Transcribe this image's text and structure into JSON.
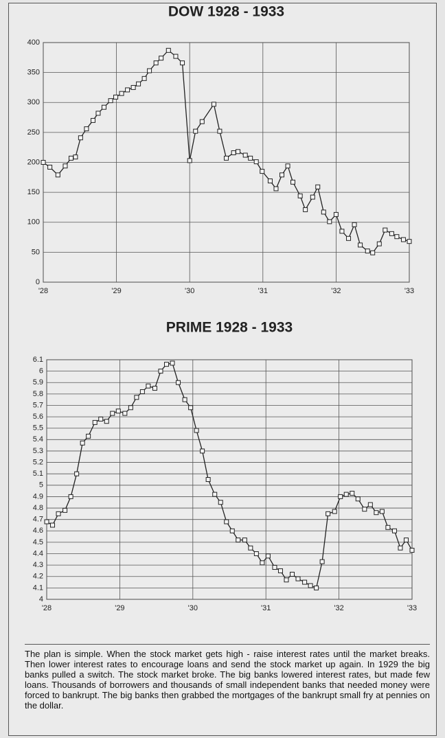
{
  "chart_data": [
    {
      "type": "line",
      "title": "DOW 1928 - 1933",
      "x": [
        1928.0,
        1928.09,
        1928.2,
        1928.3,
        1928.38,
        1928.44,
        1928.51,
        1928.59,
        1928.68,
        1928.75,
        1928.83,
        1928.92,
        1928.99,
        1929.07,
        1929.15,
        1929.23,
        1929.3,
        1929.38,
        1929.45,
        1929.54,
        1929.61,
        1929.71,
        1929.81,
        1929.9,
        1930.0,
        1930.08,
        1930.17,
        1930.33,
        1930.41,
        1930.5,
        1930.6,
        1930.66,
        1930.76,
        1930.83,
        1930.91,
        1930.99,
        1931.1,
        1931.18,
        1931.26,
        1931.34,
        1931.41,
        1931.51,
        1931.58,
        1931.68,
        1931.75,
        1931.83,
        1931.91,
        1932.0,
        1932.08,
        1932.17,
        1932.25,
        1932.33,
        1932.43,
        1932.5,
        1932.59,
        1932.67,
        1932.76,
        1932.83,
        1932.92,
        1933.0
      ],
      "values": [
        200,
        192,
        179,
        194,
        207,
        209,
        241,
        256,
        270,
        282,
        292,
        303,
        309,
        315,
        321,
        325,
        331,
        340,
        353,
        366,
        374,
        387,
        377,
        366,
        203,
        252,
        268,
        297,
        252,
        207,
        216,
        218,
        212,
        207,
        201,
        185,
        169,
        156,
        179,
        194,
        167,
        144,
        121,
        142,
        159,
        117,
        101,
        113,
        85,
        73,
        96,
        62,
        52,
        49,
        64,
        87,
        81,
        76,
        71,
        68
      ],
      "color": "#222222",
      "xlim": [
        1928,
        1933
      ],
      "xticks": [
        {
          "value": 1928,
          "label": "'28"
        },
        {
          "value": 1929,
          "label": "'29"
        },
        {
          "value": 1930,
          "label": "'30"
        },
        {
          "value": 1931,
          "label": "'31"
        },
        {
          "value": 1932,
          "label": "'32"
        },
        {
          "value": 1933,
          "label": "'33"
        }
      ],
      "ylim": [
        0,
        400
      ],
      "yticks": [
        0,
        50,
        100,
        150,
        200,
        250,
        300,
        350,
        400
      ],
      "grid": true
    },
    {
      "type": "line",
      "title": "PRIME 1928 - 1933",
      "x": [
        1928.0,
        1928.08,
        1928.16,
        1928.25,
        1928.33,
        1928.41,
        1928.49,
        1928.57,
        1928.66,
        1928.74,
        1928.82,
        1928.9,
        1928.98,
        1929.07,
        1929.15,
        1929.23,
        1929.31,
        1929.39,
        1929.48,
        1929.56,
        1929.64,
        1929.72,
        1929.8,
        1929.89,
        1929.97,
        1930.05,
        1930.13,
        1930.21,
        1930.3,
        1930.38,
        1930.46,
        1930.54,
        1930.62,
        1930.71,
        1930.79,
        1930.87,
        1930.95,
        1931.03,
        1931.12,
        1931.2,
        1931.28,
        1931.36,
        1931.44,
        1931.53,
        1931.61,
        1931.69,
        1931.77,
        1931.85,
        1931.94,
        1932.02,
        1932.1,
        1932.18,
        1932.26,
        1932.35,
        1932.43,
        1932.51,
        1932.59,
        1932.67,
        1932.76,
        1932.84,
        1932.92,
        1933.0
      ],
      "values": [
        4.68,
        4.65,
        4.75,
        4.78,
        4.9,
        5.1,
        5.37,
        5.43,
        5.55,
        5.58,
        5.56,
        5.63,
        5.65,
        5.63,
        5.68,
        5.77,
        5.82,
        5.87,
        5.85,
        6.0,
        6.06,
        6.07,
        5.9,
        5.75,
        5.68,
        5.48,
        5.3,
        5.05,
        4.92,
        4.85,
        4.68,
        4.6,
        4.52,
        4.52,
        4.45,
        4.4,
        4.32,
        4.38,
        4.28,
        4.25,
        4.17,
        4.22,
        4.18,
        4.15,
        4.12,
        4.1,
        4.33,
        4.75,
        4.77,
        4.9,
        4.92,
        4.93,
        4.88,
        4.79,
        4.83,
        4.76,
        4.77,
        4.63,
        4.6,
        4.45,
        4.52,
        4.43
      ],
      "color": "#222222",
      "xlim": [
        1928,
        1933
      ],
      "xticks": [
        {
          "value": 1928,
          "label": "'28"
        },
        {
          "value": 1929,
          "label": "'29"
        },
        {
          "value": 1930,
          "label": "'30"
        },
        {
          "value": 1931,
          "label": "'31"
        },
        {
          "value": 1932,
          "label": "'32"
        },
        {
          "value": 1933,
          "label": "'33"
        }
      ],
      "ylim": [
        4,
        6.1
      ],
      "yticks": [
        4,
        4.1,
        4.2,
        4.3,
        4.4,
        4.5,
        4.6,
        4.7,
        4.8,
        4.9,
        5,
        5.1,
        5.2,
        5.3,
        5.4,
        5.5,
        5.6,
        5.7,
        5.8,
        5.9,
        6,
        6.1
      ],
      "grid": true
    }
  ],
  "caption": "The plan is simple.  When the stock market gets high - raise interest rates until the market breaks. Then lower interest rates to encourage loans and send the stock market up again. In 1929 the big banks pulled a switch.  The stock market broke.  The big banks lowered interest rates, but made few loans. Thousands of borrowers and thousands of small independent banks that needed money were forced to bankrupt. The big banks then grabbed the mortgages of the bankrupt small fry at pennies on the dollar."
}
